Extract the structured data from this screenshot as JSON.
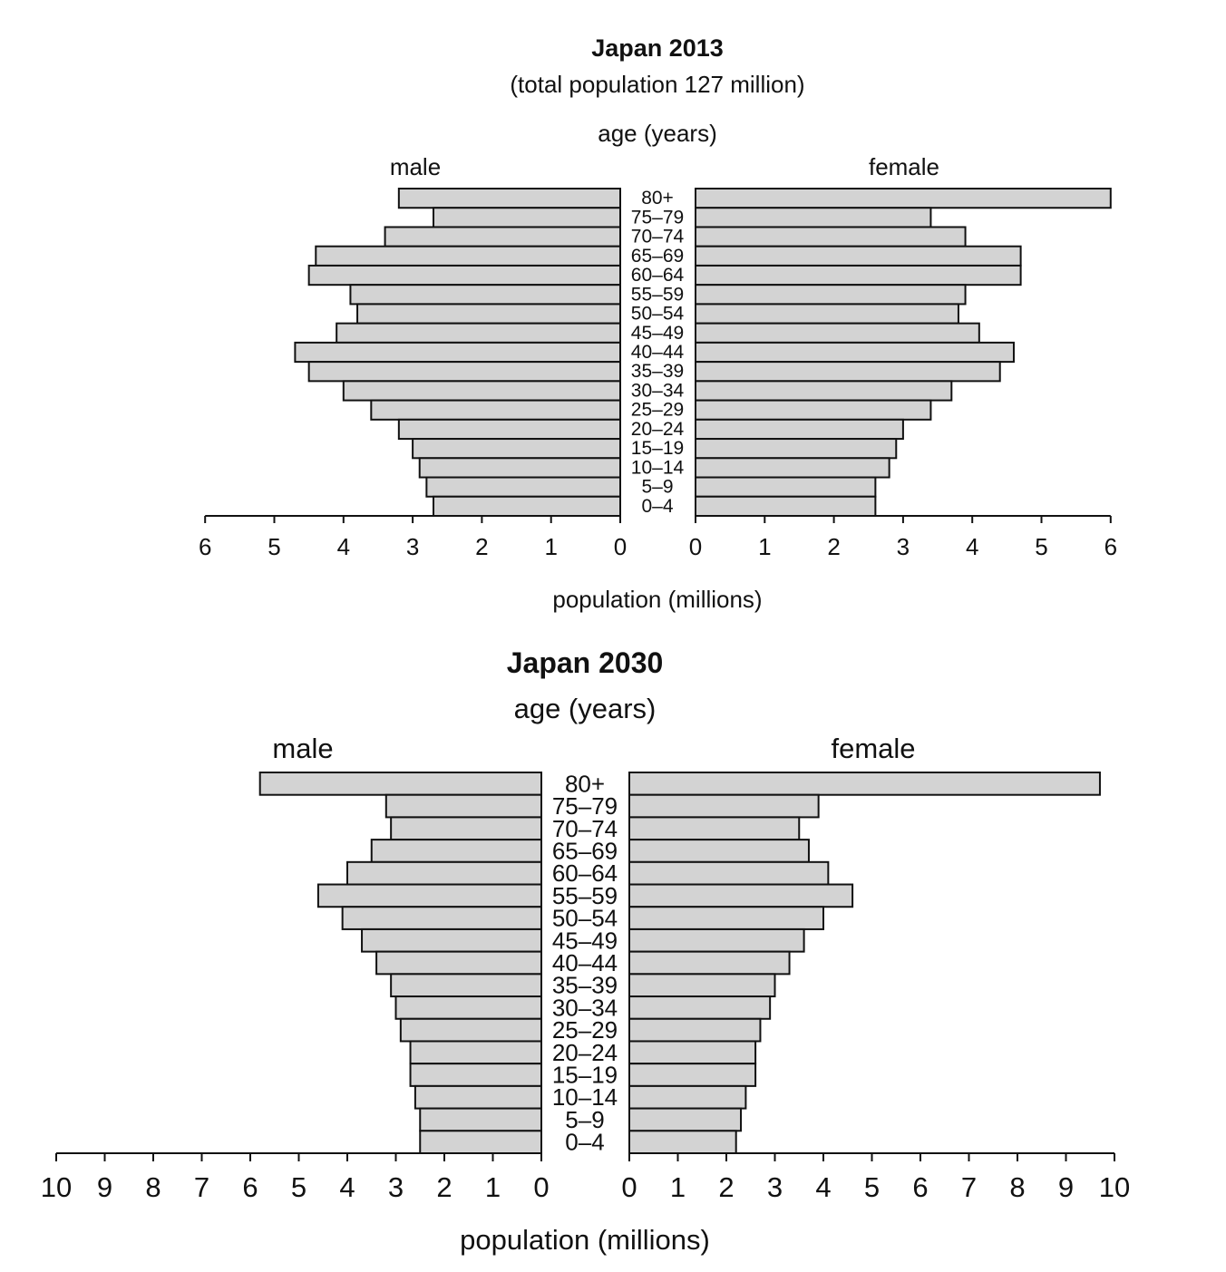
{
  "chart_data": [
    {
      "type": "bar",
      "orientation": "horizontal",
      "layout": "population-pyramid",
      "title": "Japan 2013",
      "subtitle": "(total population 127 million)",
      "age_axis_label": "age (years)",
      "xlabel": "population (millions)",
      "xlim": [
        0,
        6
      ],
      "xticks": [
        0,
        1,
        2,
        3,
        4,
        5,
        6
      ],
      "categories": [
        "80+",
        "75–79",
        "70–74",
        "65–69",
        "60–64",
        "55–59",
        "50–54",
        "45–49",
        "40–44",
        "35–39",
        "30–34",
        "25–29",
        "20–24",
        "15–19",
        "10–14",
        "5–9",
        "0–4"
      ],
      "series": [
        {
          "name": "male",
          "values": [
            3.2,
            2.7,
            3.4,
            4.4,
            4.5,
            3.9,
            3.8,
            4.1,
            4.7,
            4.5,
            4.0,
            3.6,
            3.2,
            3.0,
            2.9,
            2.8,
            2.7
          ]
        },
        {
          "name": "female",
          "values": [
            6.0,
            3.4,
            3.9,
            4.7,
            4.7,
            3.9,
            3.8,
            4.1,
            4.6,
            4.4,
            3.7,
            3.4,
            3.0,
            2.9,
            2.8,
            2.6,
            2.6
          ]
        }
      ],
      "bar_fill": "#d3d3d3",
      "bar_stroke": "#111111"
    },
    {
      "type": "bar",
      "orientation": "horizontal",
      "layout": "population-pyramid",
      "title": "Japan 2030",
      "subtitle": "",
      "age_axis_label": "age (years)",
      "xlabel": "population (millions)",
      "xlim": [
        0,
        10
      ],
      "xticks": [
        0,
        1,
        2,
        3,
        4,
        5,
        6,
        7,
        8,
        9,
        10
      ],
      "categories": [
        "80+",
        "75–79",
        "70–74",
        "65–69",
        "60–64",
        "55–59",
        "50–54",
        "45–49",
        "40–44",
        "35–39",
        "30–34",
        "25–29",
        "20–24",
        "15–19",
        "10–14",
        "5–9",
        "0–4"
      ],
      "series": [
        {
          "name": "male",
          "values": [
            5.8,
            3.2,
            3.1,
            3.5,
            4.0,
            4.6,
            4.1,
            3.7,
            3.4,
            3.1,
            3.0,
            2.9,
            2.7,
            2.7,
            2.6,
            2.5,
            2.5
          ]
        },
        {
          "name": "female",
          "values": [
            9.7,
            3.9,
            3.5,
            3.7,
            4.1,
            4.6,
            4.0,
            3.6,
            3.3,
            3.0,
            2.9,
            2.7,
            2.6,
            2.6,
            2.4,
            2.3,
            2.2
          ]
        }
      ],
      "bar_fill": "#d3d3d3",
      "bar_stroke": "#111111"
    }
  ]
}
